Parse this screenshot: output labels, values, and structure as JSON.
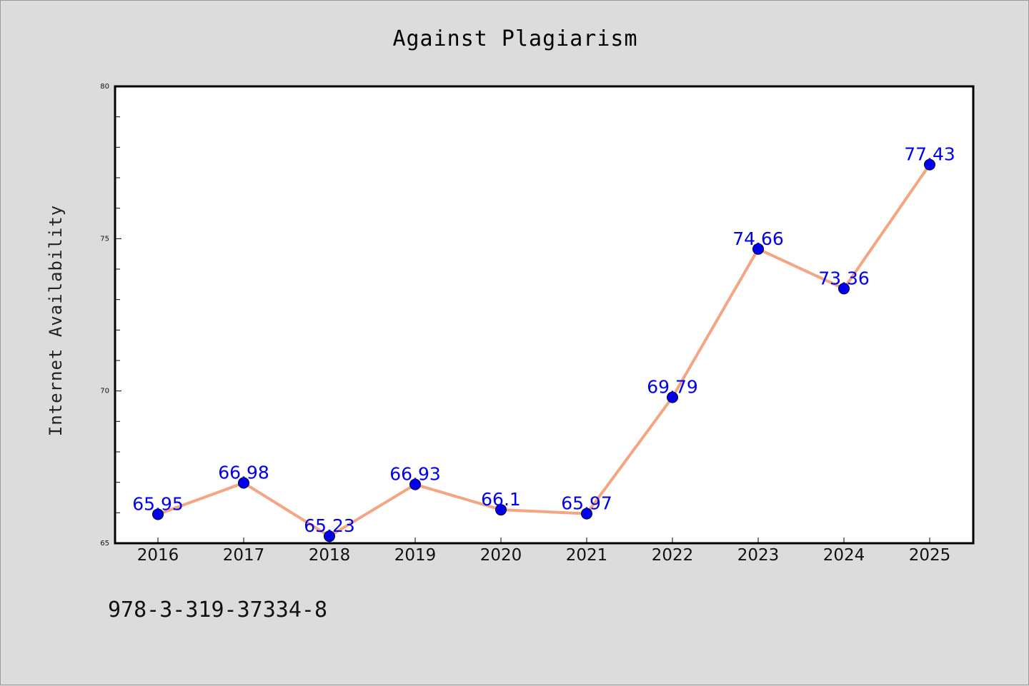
{
  "chart_data": {
    "type": "line",
    "title": "Against Plagiarism",
    "xlabel": "",
    "ylabel": "Internet Availability",
    "categories": [
      "2016",
      "2017",
      "2018",
      "2019",
      "2020",
      "2021",
      "2022",
      "2023",
      "2024",
      "2025"
    ],
    "series": [
      {
        "values": [
          65.95,
          66.98,
          65.23,
          66.93,
          66.1,
          65.97,
          69.79,
          74.66,
          73.36,
          77.43
        ],
        "labels": [
          "65.95",
          "66.98",
          "65.23",
          "66.93",
          "66.1",
          "65.97",
          "69.79",
          "74.66",
          "73.36",
          "77.43"
        ],
        "line_color": "#f4a582",
        "marker_color": "#0000ee"
      }
    ],
    "ylim": [
      65,
      80
    ],
    "yticks": [
      "65",
      "70",
      "75",
      "80"
    ],
    "grid": false,
    "legend": "none"
  },
  "footer_text": "978-3-319-37334-8",
  "colors": {
    "background": "#dcdcdc",
    "plot_background": "#ffffff",
    "line": "#f4a582",
    "marker": "#0000ee",
    "data_label": "#0000ee"
  }
}
